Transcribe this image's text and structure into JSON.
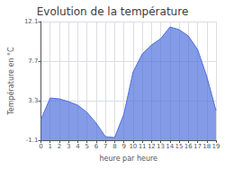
{
  "chart_data": {
    "type": "area",
    "title": "Evolution de la température",
    "xlabel": "heure par heure",
    "ylabel": "Température en °C",
    "x": [
      0,
      1,
      2,
      3,
      4,
      5,
      6,
      7,
      8,
      9,
      10,
      11,
      12,
      13,
      14,
      15,
      16,
      17,
      18,
      19
    ],
    "values": [
      1.2,
      3.6,
      3.5,
      3.2,
      2.8,
      2.0,
      0.8,
      -0.7,
      -0.8,
      1.8,
      6.5,
      8.5,
      9.5,
      10.2,
      11.5,
      11.2,
      10.5,
      9.0,
      6.0,
      2.2
    ],
    "xlim": [
      0,
      19
    ],
    "xticks": [
      0,
      1,
      2,
      3,
      4,
      5,
      6,
      7,
      8,
      9,
      10,
      11,
      12,
      13,
      14,
      15,
      16,
      17,
      18,
      19
    ],
    "ylim": [
      -1.1,
      12.1
    ],
    "yticks": [
      -1.1,
      3.3,
      7.7,
      12.1
    ],
    "grid": true
  }
}
